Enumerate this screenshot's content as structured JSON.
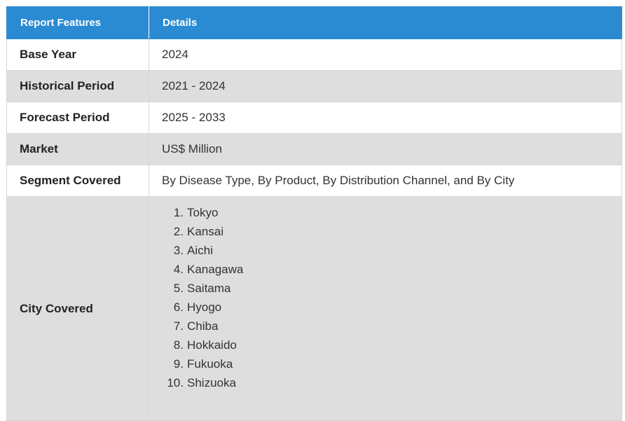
{
  "header": {
    "col1": "Report Features",
    "col2": "Details"
  },
  "rows": [
    {
      "feature": "Base Year",
      "detail": "2024"
    },
    {
      "feature": "Historical Period",
      "detail": "2021 - 2024"
    },
    {
      "feature": "Forecast Period",
      "detail": "2025 - 2033"
    },
    {
      "feature": "Market",
      "detail": "US$ Million"
    },
    {
      "feature": "Segment Covered",
      "detail": "By Disease Type, By Product, By Distribution Channel, and By City"
    }
  ],
  "cities_row": {
    "feature": "City Covered",
    "items": [
      "Tokyo",
      "Kansai",
      "Aichi",
      "Kanagawa",
      "Saitama",
      "Hyogo",
      "Chiba",
      "Hokkaido",
      "Fukuoka",
      "Shizuoka"
    ]
  }
}
